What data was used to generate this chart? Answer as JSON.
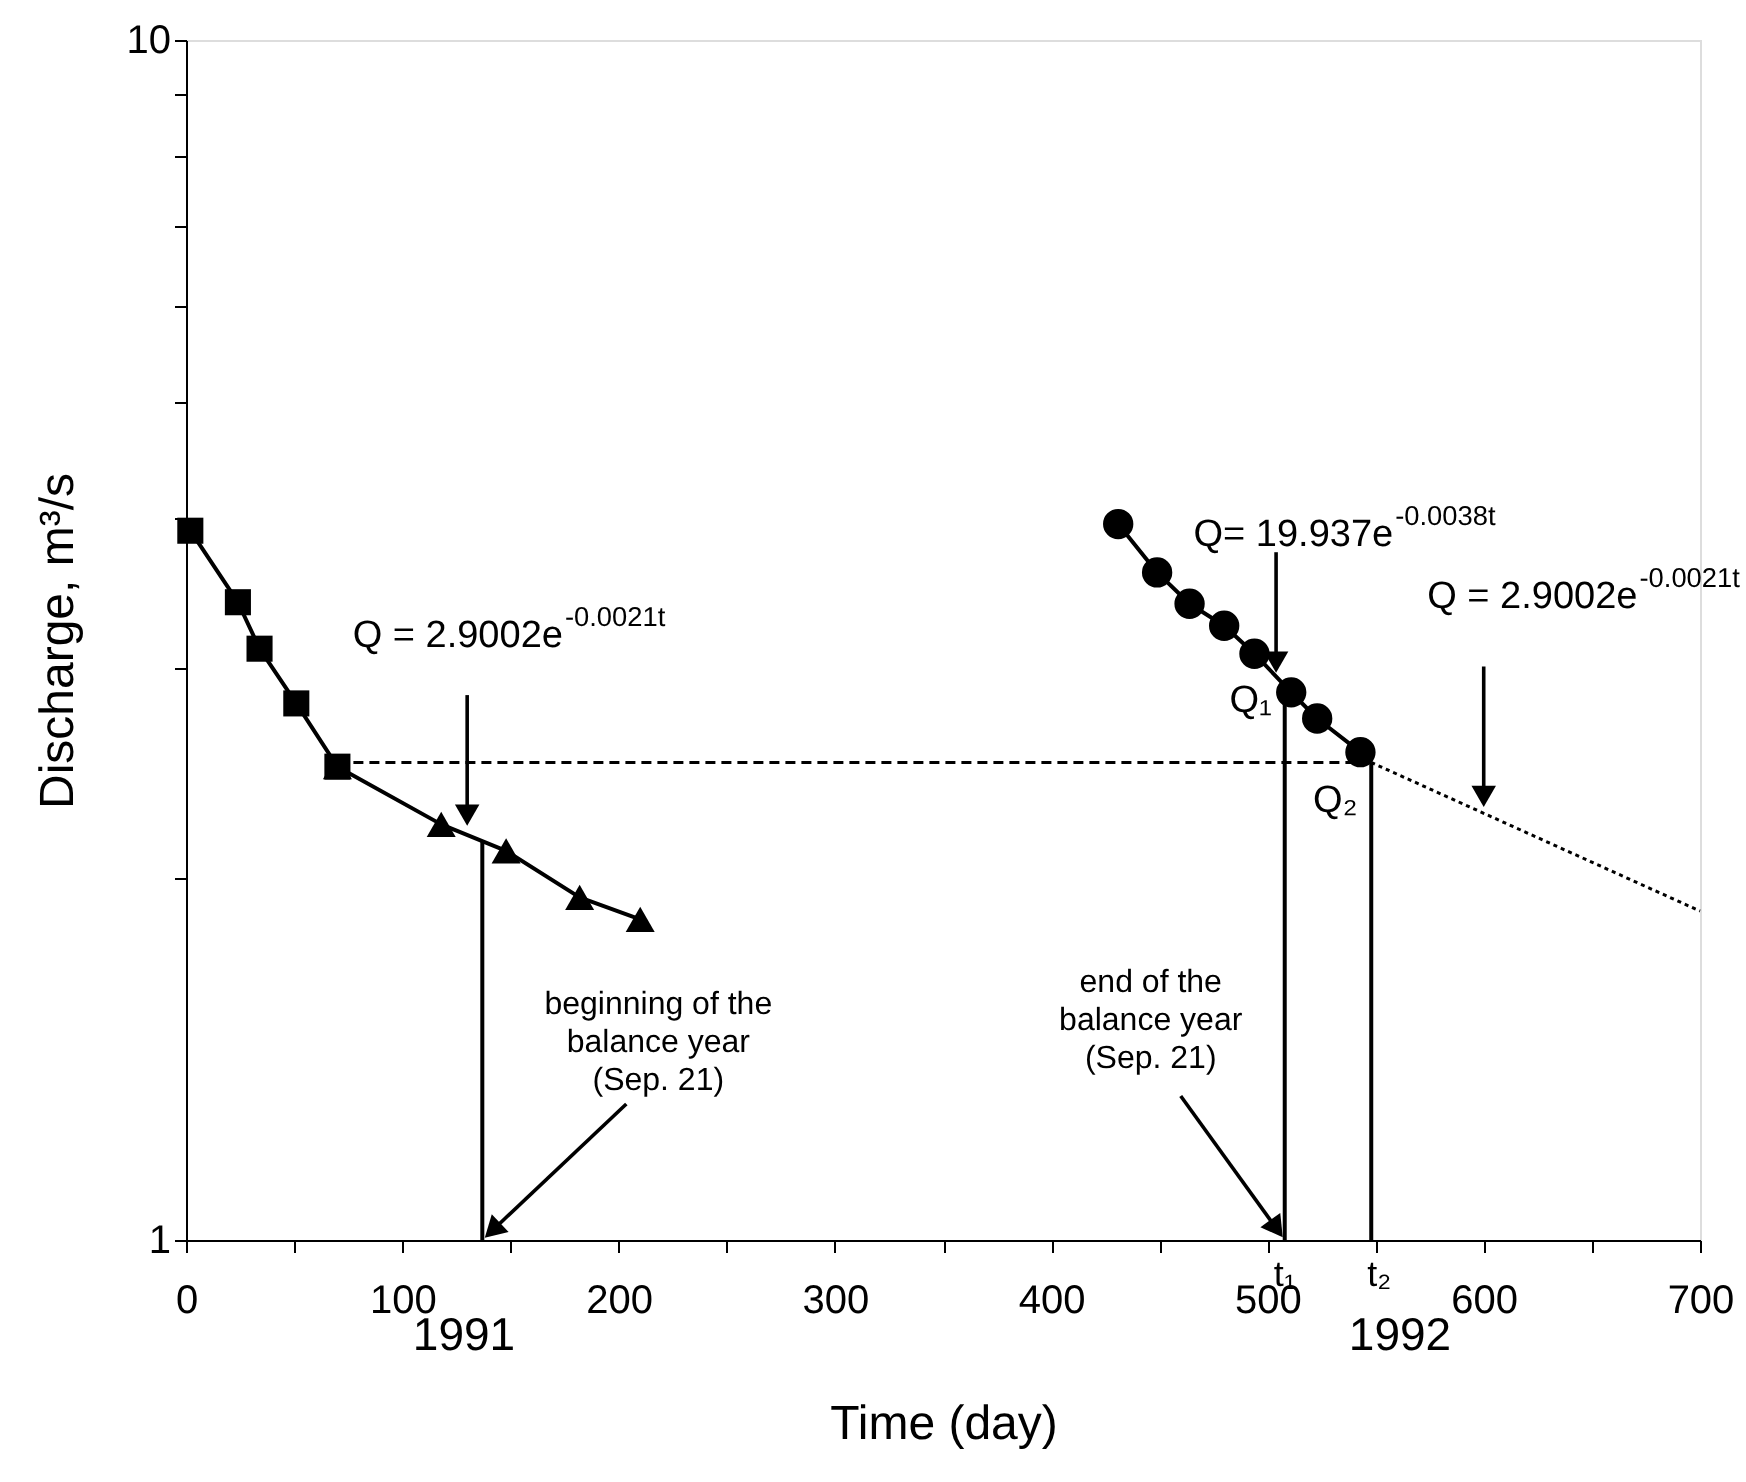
{
  "chart_data": {
    "type": "line",
    "xlabel": "Time (day)",
    "ylabel": "Discharge, m³/s",
    "xlim": [
      0,
      700
    ],
    "xticks": [
      0,
      {
        "value": 50,
        "label": null
      },
      100,
      {
        "value": 150,
        "label": null
      },
      200,
      {
        "value": 250,
        "label": null
      },
      300,
      {
        "value": 350,
        "label": null
      },
      400,
      {
        "value": 450,
        "label": null
      },
      500,
      {
        "value": 550,
        "label": null
      },
      600,
      {
        "value": 650,
        "label": null
      },
      700
    ],
    "ylim": [
      1,
      10
    ],
    "yticks": [
      1,
      {
        "value": 2,
        "label": null
      },
      {
        "value": 3,
        "label": null
      },
      {
        "value": 4,
        "label": null
      },
      {
        "value": 5,
        "label": null
      },
      {
        "value": 6,
        "label": null
      },
      {
        "value": 7,
        "label": null
      },
      {
        "value": 8,
        "label": null
      },
      {
        "value": 9,
        "label": null
      },
      10
    ],
    "log": "y",
    "grid": false,
    "series": [
      {
        "marker": "square",
        "line_style": "solid",
        "color": "#000000",
        "x": [
          2,
          24,
          34,
          51,
          70
        ],
        "values": [
          3.9,
          3.4,
          3.11,
          2.8,
          2.48
        ]
      },
      {
        "marker": "triangle",
        "line_style": "solid",
        "color": "#000000",
        "x": [
          70,
          118,
          148,
          182,
          210
        ],
        "values": [
          2.48,
          2.22,
          2.11,
          1.93,
          1.85
        ]
      },
      {
        "marker": "circle",
        "line_style": "solid",
        "color": "#000000",
        "x": [
          431,
          449,
          464,
          480,
          494,
          511,
          523,
          543
        ],
        "values": [
          3.95,
          3.6,
          3.39,
          3.25,
          3.08,
          2.86,
          2.72,
          2.55
        ]
      },
      {
        "marker": "none",
        "line_style": "dashed",
        "color": "#000000",
        "x": [
          70,
          548
        ],
        "values": [
          2.5,
          2.5
        ]
      },
      {
        "marker": "none",
        "line_style": "dotted",
        "color": "#000000",
        "x": [
          548,
          700
        ],
        "values": [
          2.5,
          1.88
        ]
      },
      {
        "marker": "none",
        "line_style": "solid",
        "color": "#000000",
        "x": [
          137,
          137
        ],
        "values": [
          1,
          2.15
        ]
      },
      {
        "marker": "none",
        "line_style": "solid",
        "color": "#000000",
        "x": [
          508,
          508
        ],
        "values": [
          1,
          2.86
        ]
      },
      {
        "marker": "none",
        "line_style": "solid",
        "color": "#000000",
        "x": [
          548,
          548
        ],
        "values": [
          1,
          2.5
        ]
      }
    ],
    "annotations": [
      {
        "text": "Q = 2.9002e$^{-0.0021t}$",
        "x": 130,
        "y": 2.2
      },
      {
        "text": "Q= 19.937e$^{-0.0038t}$",
        "x": 504,
        "y": 2.95
      },
      {
        "text": "Q = 2.9002e$^{-0.0021t}$",
        "x": 600,
        "y": 2.28
      },
      {
        "text": "beginning of the\nbalance year\n(Sep. 21)",
        "x": 137,
        "y": 1
      },
      {
        "text": "end of the\nbalance year\n(Sep. 21)",
        "x": 508,
        "y": 1
      },
      {
        "text": "Q₁",
        "x": 508,
        "y": 2.86
      },
      {
        "text": "Q₂",
        "x": 548,
        "y": 2.5
      },
      {
        "text": "t₁",
        "x": 508,
        "y": 1
      },
      {
        "text": "t₂",
        "x": 548,
        "y": 1
      },
      "1991",
      "1992"
    ]
  }
}
